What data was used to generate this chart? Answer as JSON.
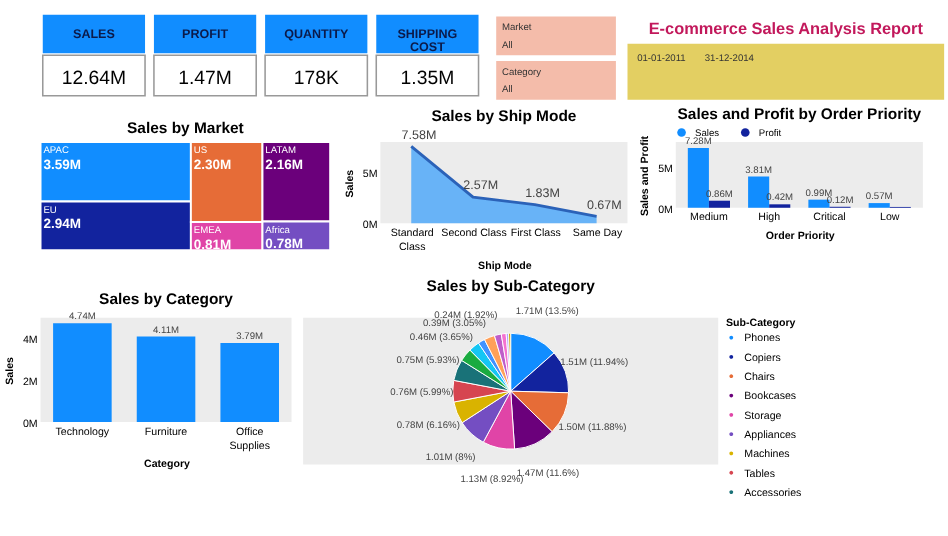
{
  "chart_data": [
    {
      "type": "other",
      "categories": [
        "SALES",
        "PROFIT",
        "QUANTITY",
        "SHIPPING COST"
      ],
      "value_labels": [
        "12.64M",
        "1.47M",
        "178K",
        "1.35M"
      ],
      "color": "#118dff"
    },
    {
      "type": "other",
      "title": "E-commerce Sales Analysis Report",
      "annotations": [
        "Market",
        "All",
        "Category",
        "All",
        "01-01-2011",
        "31-12-2014"
      ]
    },
    {
      "type": "other",
      "title": "Sales by Market",
      "categories": [
        "APAC",
        "EU",
        "US",
        "EMEA",
        "LATAM",
        "Africa"
      ],
      "values": [
        3.59,
        2.94,
        2.3,
        0.81,
        2.16,
        0.78
      ],
      "value_labels": [
        "3.59M",
        "2.94M",
        "2.30M",
        "0.81M",
        "2.16M",
        "0.78M"
      ],
      "colors": [
        "#118dff",
        "#12239e",
        "#e66c37",
        "#e044a7",
        "#6b007b",
        "#744ec2"
      ]
    },
    {
      "type": "area",
      "title": "Sales by Ship Mode",
      "xlabel": "Ship Mode",
      "ylabel": "Sales",
      "categories": [
        "Standard Class",
        "Second Class",
        "First Class",
        "Same Day"
      ],
      "series": [
        {
          "color": "#118dff",
          "values": [
            7.58,
            2.57,
            1.83,
            0.67
          ],
          "value_labels": [
            "7.58M",
            "2.57M",
            "1.83M",
            "0.67M"
          ]
        }
      ],
      "ylim": [
        0,
        8
      ],
      "yticks": [
        {
          "value": 0,
          "label": "0M"
        },
        {
          "value": 5,
          "label": "5M"
        }
      ]
    },
    {
      "type": "bar",
      "title": "Sales and Profit by Order Priority",
      "xlabel": "Order Priority",
      "ylabel": "Sales and Profit",
      "categories": [
        "Medium",
        "High",
        "Critical",
        "Low"
      ],
      "series": [
        {
          "name": "Sales",
          "color": "#118dff",
          "values": [
            7.28,
            3.81,
            0.99,
            0.57
          ],
          "value_labels": [
            "7.28M",
            "3.81M",
            "0.99M",
            "0.57M"
          ]
        },
        {
          "name": "Profit",
          "color": "#12239e",
          "values": [
            0.86,
            0.42,
            0.12,
            0.1
          ],
          "value_labels": [
            "0.86M",
            "0.42M",
            "0.12M",
            null
          ]
        }
      ],
      "legend": "top left",
      "ylim": [
        0,
        8
      ],
      "yticks": [
        {
          "value": 0,
          "label": "0M"
        },
        {
          "value": 5,
          "label": "5M"
        }
      ]
    },
    {
      "type": "bar",
      "title": "Sales by Category",
      "xlabel": "Category",
      "ylabel": "Sales",
      "categories": [
        "Technology",
        "Furniture",
        "Office Supplies"
      ],
      "series": [
        {
          "color": "#118dff",
          "values": [
            4.74,
            4.11,
            3.79
          ],
          "value_labels": [
            "4.74M",
            "4.11M",
            "3.79M"
          ]
        }
      ],
      "ylim": [
        0,
        5
      ],
      "yticks": [
        {
          "value": 0,
          "label": "0M"
        },
        {
          "value": 2,
          "label": "2M"
        },
        {
          "value": 4,
          "label": "4M"
        }
      ]
    },
    {
      "type": "pie",
      "title": "Sales by Sub-Category",
      "legend_title": "Sub-Category",
      "legend": "right",
      "categories": [
        "Phones",
        "Copiers",
        "Chairs",
        "Bookcases",
        "Storage",
        "Appliances",
        "Machines",
        "Tables",
        "Accessories",
        null,
        null,
        null,
        null,
        null,
        null,
        null,
        null
      ],
      "values": [
        13.5,
        11.94,
        11.88,
        11.6,
        8.92,
        8,
        6.16,
        5.99,
        5.93,
        3.65,
        3.05,
        1.92,
        2.94,
        1.92,
        1.35,
        0.66,
        0.59
      ],
      "value_labels": [
        "1.71M (13.5%)",
        "1.51M (11.94%)",
        "1.50M (11.88%)",
        "1.47M (11.6%)",
        "1.13M (8.92%)",
        "1.01M (8%)",
        "0.78M (6.16%)",
        "0.76M (5.99%)",
        "0.75M (5.93%)",
        "0.46M (3.65%)",
        "0.39M (3.05%)",
        "0.24M (1.92%)",
        null,
        null,
        null,
        null,
        null
      ],
      "colors": [
        "#118dff",
        "#12239e",
        "#e66c37",
        "#6b007b",
        "#e044a7",
        "#744ec2",
        "#d9b300",
        "#d64550",
        "#197278",
        "#1aab40",
        "#15c6f4",
        "#4092ff",
        "#ffa058",
        "#be5dc9",
        "#f472d0",
        "#b5a1ff",
        "#c4a200"
      ]
    }
  ]
}
